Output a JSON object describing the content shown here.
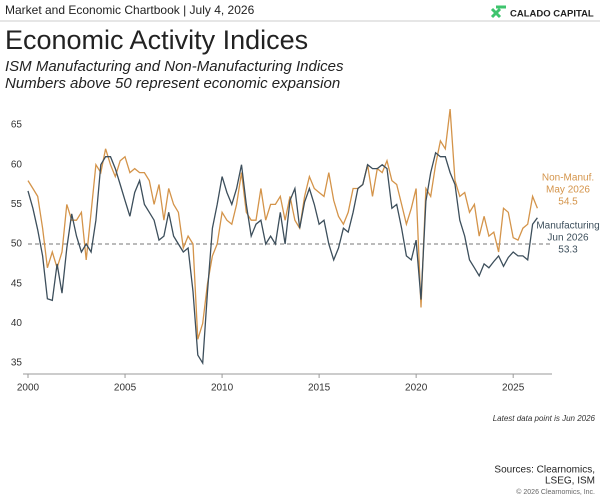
{
  "header": {
    "text": "Market and Economic Chartbook | July 4, 2026",
    "logo": "CALADO CAPITAL"
  },
  "chart_data": {
    "type": "line",
    "title": "Economic Activity Indices",
    "subtitle": [
      "ISM Manufacturing and Non-Manufacturing Indices",
      "Numbers above 50 represent economic expansion"
    ],
    "x": [
      2000,
      2000.25,
      2000.5,
      2000.75,
      2001,
      2001.25,
      2001.5,
      2001.75,
      2002,
      2002.25,
      2002.5,
      2002.75,
      2003,
      2003.25,
      2003.5,
      2003.75,
      2004,
      2004.25,
      2004.5,
      2004.75,
      2005,
      2005.25,
      2005.5,
      2005.75,
      2006,
      2006.25,
      2006.5,
      2006.75,
      2007,
      2007.25,
      2007.5,
      2007.75,
      2008,
      2008.25,
      2008.5,
      2008.75,
      2009,
      2009.25,
      2009.5,
      2009.75,
      2010,
      2010.25,
      2010.5,
      2010.75,
      2011,
      2011.25,
      2011.5,
      2011.75,
      2012,
      2012.25,
      2012.5,
      2012.75,
      2013,
      2013.25,
      2013.5,
      2013.75,
      2014,
      2014.25,
      2014.5,
      2014.75,
      2015,
      2015.25,
      2015.5,
      2015.75,
      2016,
      2016.25,
      2016.5,
      2016.75,
      2017,
      2017.25,
      2017.5,
      2017.75,
      2018,
      2018.25,
      2018.5,
      2018.75,
      2019,
      2019.25,
      2019.5,
      2019.75,
      2020,
      2020.25,
      2020.5,
      2020.75,
      2021,
      2021.25,
      2021.5,
      2021.75,
      2022,
      2022.25,
      2022.5,
      2022.75,
      2023,
      2023.25,
      2023.5,
      2023.75,
      2024,
      2024.25,
      2024.5,
      2024.75,
      2025,
      2025.25,
      2025.5,
      2025.75,
      2026,
      2026.25
    ],
    "series": [
      {
        "name": "Manufacturing",
        "end_date": "Jun 2026",
        "color": "#3d4f5c",
        "values": [
          56.7,
          54.5,
          51.8,
          48.5,
          43.1,
          42.9,
          47.5,
          43.8,
          49.5,
          53.8,
          51.0,
          49.0,
          50.0,
          49.0,
          53.0,
          60.0,
          61.0,
          61.0,
          59.5,
          57.5,
          55.5,
          53.5,
          56.5,
          58.0,
          55.0,
          54.0,
          53.0,
          50.5,
          51.0,
          54.0,
          51.0,
          50.0,
          49.0,
          49.5,
          44.0,
          36.0,
          35.0,
          44.0,
          52.0,
          55.0,
          58.5,
          56.5,
          55.0,
          57.0,
          60.0,
          55.0,
          51.0,
          52.5,
          53.0,
          50.0,
          51.0,
          50.0,
          54.0,
          50.0,
          55.5,
          57.0,
          52.0,
          55.3,
          57.0,
          55.0,
          52.5,
          53.0,
          50.0,
          48.0,
          49.5,
          52.0,
          51.5,
          54.0,
          57.0,
          57.5,
          60.0,
          59.5,
          59.5,
          60.0,
          59.5,
          54.5,
          55.0,
          52.0,
          48.5,
          48.0,
          50.5,
          43.0,
          55.4,
          59.0,
          61.5,
          61.0,
          61.0,
          59.0,
          57.5,
          53.0,
          51.0,
          48.0,
          47.0,
          46.0,
          47.5,
          47.0,
          47.8,
          48.5,
          47.2,
          48.3,
          49.0,
          48.5,
          48.5,
          48.0,
          52.5,
          53.3
        ]
      },
      {
        "name": "Non-Manuf.",
        "end_date": "May 2026",
        "color": "#d4944a",
        "values": [
          58.0,
          57.0,
          56.0,
          52.0,
          47.0,
          49.0,
          47.0,
          49.0,
          55.0,
          53.0,
          53.0,
          54.0,
          48.0,
          54.0,
          60.0,
          59.0,
          62.0,
          60.0,
          58.5,
          60.5,
          61.0,
          59.0,
          59.5,
          59.0,
          59.0,
          58.0,
          55.0,
          57.5,
          53.0,
          57.0,
          55.0,
          54.0,
          49.5,
          51.0,
          50.0,
          38.0,
          40.0,
          45.0,
          48.5,
          50.0,
          54.0,
          53.0,
          52.5,
          55.0,
          59.0,
          54.0,
          53.0,
          53.0,
          57.0,
          53.0,
          55.0,
          55.0,
          56.0,
          53.0,
          56.0,
          53.0,
          52.0,
          56.0,
          58.5,
          57.0,
          56.5,
          56.0,
          59.0,
          55.5,
          53.5,
          52.5,
          54.0,
          57.0,
          57.0,
          57.5,
          60.0,
          56.0,
          59.5,
          59.0,
          60.5,
          58.0,
          57.5,
          55.0,
          52.5,
          54.5,
          57.0,
          42.0,
          57.0,
          56.0,
          60.0,
          63.0,
          62.0,
          67.0,
          58.0,
          56.0,
          56.5,
          54.0,
          55.0,
          51.0,
          53.5,
          51.0,
          51.5,
          49.0,
          54.5,
          54.0,
          50.8,
          50.5,
          52.0,
          52.5,
          56.0,
          54.5
        ]
      }
    ],
    "xlim": [
      2000,
      2027
    ],
    "xticks": [
      2000,
      2005,
      2010,
      2015,
      2020,
      2025
    ],
    "ylim": [
      34,
      68
    ],
    "yticks": [
      35,
      40,
      45,
      50,
      55,
      60,
      65
    ],
    "reference_line": 50,
    "note": "Latest data point is Jun 2026"
  },
  "footer": {
    "sources": [
      "Sources: Clearnomics,",
      "LSEG, ISM"
    ],
    "copyright": "© 2026 Clearnomics, Inc."
  }
}
